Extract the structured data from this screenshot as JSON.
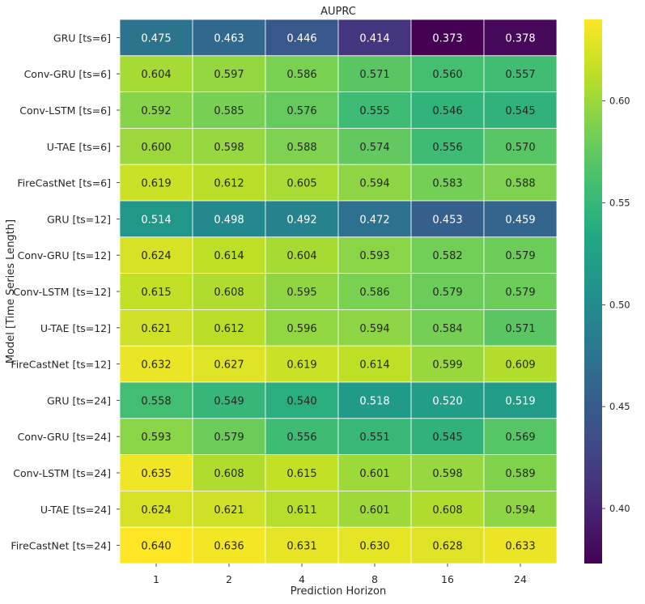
{
  "chart_data": {
    "type": "heatmap",
    "title": "AUPRC",
    "xlabel": "Prediction Horizon",
    "ylabel": "Model [Time Series Length]",
    "columns": [
      "1",
      "2",
      "4",
      "8",
      "16",
      "24"
    ],
    "rows": [
      "GRU [ts=6]",
      "Conv-GRU [ts=6]",
      "Conv-LSTM [ts=6]",
      "U-TAE [ts=6]",
      "FireCastNet [ts=6]",
      "GRU [ts=12]",
      "Conv-GRU [ts=12]",
      "Conv-LSTM [ts=12]",
      "U-TAE [ts=12]",
      "FireCastNet [ts=12]",
      "GRU [ts=24]",
      "Conv-GRU [ts=24]",
      "Conv-LSTM [ts=24]",
      "U-TAE [ts=24]",
      "FireCastNet [ts=24]"
    ],
    "values": [
      [
        0.475,
        0.463,
        0.446,
        0.414,
        0.373,
        0.378
      ],
      [
        0.604,
        0.597,
        0.586,
        0.571,
        0.56,
        0.557
      ],
      [
        0.592,
        0.585,
        0.576,
        0.555,
        0.546,
        0.545
      ],
      [
        0.6,
        0.598,
        0.588,
        0.574,
        0.556,
        0.57
      ],
      [
        0.619,
        0.612,
        0.605,
        0.594,
        0.583,
        0.588
      ],
      [
        0.514,
        0.498,
        0.492,
        0.472,
        0.453,
        0.459
      ],
      [
        0.624,
        0.614,
        0.604,
        0.593,
        0.582,
        0.579
      ],
      [
        0.615,
        0.608,
        0.595,
        0.586,
        0.579,
        0.579
      ],
      [
        0.621,
        0.612,
        0.596,
        0.594,
        0.584,
        0.571
      ],
      [
        0.632,
        0.627,
        0.619,
        0.614,
        0.599,
        0.609
      ],
      [
        0.558,
        0.549,
        0.54,
        0.518,
        0.52,
        0.519
      ],
      [
        0.593,
        0.579,
        0.556,
        0.551,
        0.545,
        0.569
      ],
      [
        0.635,
        0.608,
        0.615,
        0.601,
        0.598,
        0.589
      ],
      [
        0.624,
        0.621,
        0.611,
        0.601,
        0.608,
        0.594
      ],
      [
        0.64,
        0.636,
        0.631,
        0.63,
        0.628,
        0.633
      ]
    ],
    "value_format": "3 decimals",
    "colormap": "viridis",
    "color_range": [
      0.373,
      0.64
    ],
    "colorbar_ticks": [
      "0.40",
      "0.45",
      "0.50",
      "0.55",
      "0.60"
    ],
    "colorbar_tick_values": [
      0.4,
      0.45,
      0.5,
      0.55,
      0.6
    ],
    "text_color_dark": "#262626",
    "text_color_light": "#ffffff",
    "grid_line_color": "#ffffff"
  }
}
